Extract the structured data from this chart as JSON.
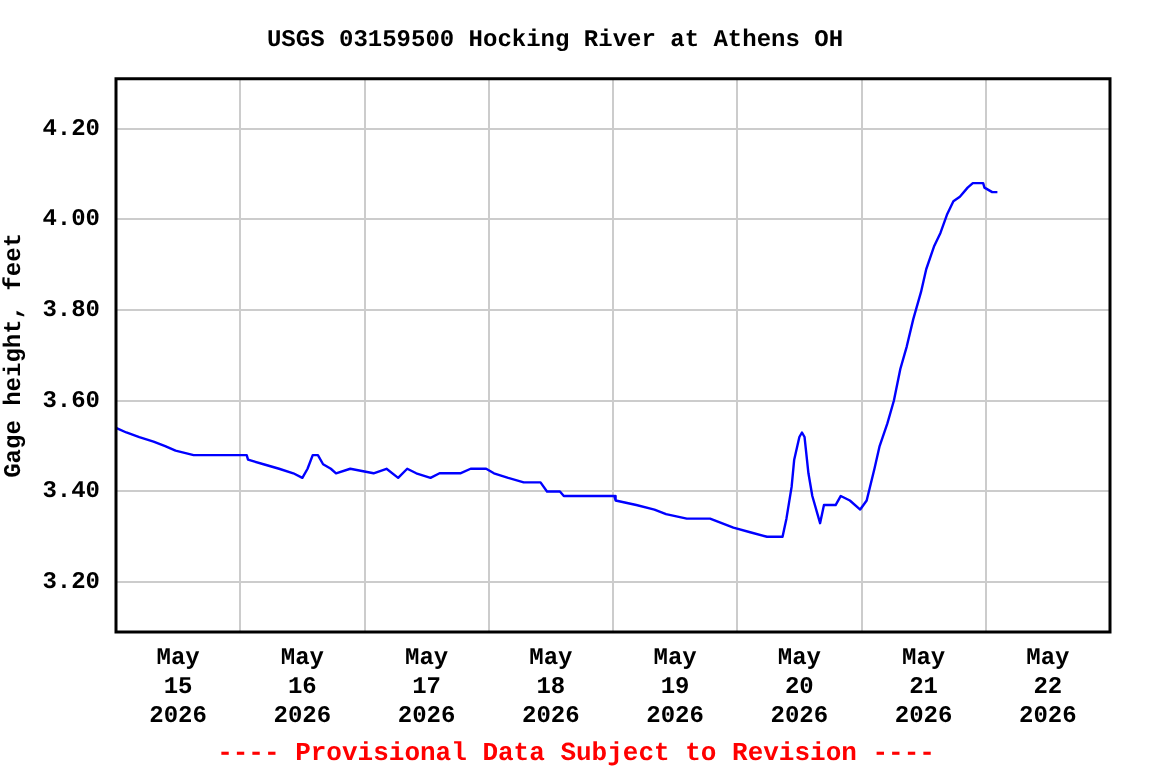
{
  "chart_data": {
    "type": "line",
    "title": "USGS 03159500 Hocking River at Athens OH",
    "ylabel": "Gage height, feet",
    "annotations": [
      "---- Provisional Data Subject to Revision ----"
    ],
    "x": [
      "2026-05-15T00:00",
      "2026-05-15T02:00",
      "2026-05-15T04:30",
      "2026-05-15T07:15",
      "2026-05-15T09:30",
      "2026-05-15T11:30",
      "2026-05-15T15:00",
      "2026-05-16T01:15",
      "2026-05-16T01:30",
      "2026-05-16T04:30",
      "2026-05-16T07:30",
      "2026-05-16T10:15",
      "2026-05-16T12:00",
      "2026-05-16T13:00",
      "2026-05-16T14:00",
      "2026-05-16T15:00",
      "2026-05-16T16:00",
      "2026-05-16T17:30",
      "2026-05-16T18:30",
      "2026-05-16T21:15",
      "2026-05-17T01:45",
      "2026-05-17T04:15",
      "2026-05-17T06:30",
      "2026-05-17T08:15",
      "2026-05-17T10:00",
      "2026-05-17T12:45",
      "2026-05-17T14:30",
      "2026-05-17T18:30",
      "2026-05-17T20:30",
      "2026-05-17T23:30",
      "2026-05-18T01:00",
      "2026-05-18T03:45",
      "2026-05-18T06:45",
      "2026-05-18T10:00",
      "2026-05-18T11:15",
      "2026-05-18T13:45",
      "2026-05-18T14:30",
      "2026-05-18T17:45",
      "2026-05-19T00:15",
      "2026-05-19T00:30",
      "2026-05-19T04:30",
      "2026-05-19T08:00",
      "2026-05-19T10:15",
      "2026-05-19T14:15",
      "2026-05-19T18:45",
      "2026-05-19T23:15",
      "2026-05-20T02:30",
      "2026-05-20T05:45",
      "2026-05-20T08:45",
      "2026-05-20T09:30",
      "2026-05-20T10:30",
      "2026-05-20T11:00",
      "2026-05-20T12:00",
      "2026-05-20T12:30",
      "2026-05-20T13:00",
      "2026-05-20T13:45",
      "2026-05-20T14:30",
      "2026-05-20T15:30",
      "2026-05-20T16:00",
      "2026-05-20T16:45",
      "2026-05-20T19:00",
      "2026-05-20T20:00",
      "2026-05-20T21:45",
      "2026-05-20T23:45",
      "2026-05-21T01:00",
      "2026-05-21T02:30",
      "2026-05-21T03:30",
      "2026-05-21T05:00",
      "2026-05-21T06:15",
      "2026-05-21T07:30",
      "2026-05-21T08:45",
      "2026-05-21T10:00",
      "2026-05-21T11:30",
      "2026-05-21T12:30",
      "2026-05-21T14:00",
      "2026-05-21T15:15",
      "2026-05-21T16:30",
      "2026-05-21T17:45",
      "2026-05-21T19:00",
      "2026-05-21T20:30",
      "2026-05-21T21:30",
      "2026-05-21T23:30",
      "2026-05-21T23:45",
      "2026-05-22T01:15",
      "2026-05-22T02:15"
    ],
    "series": [
      {
        "color": "#0000ff",
        "values": [
          3.54,
          3.53,
          3.52,
          3.51,
          3.5,
          3.49,
          3.48,
          3.48,
          3.47,
          3.46,
          3.45,
          3.44,
          3.43,
          3.45,
          3.48,
          3.48,
          3.46,
          3.45,
          3.44,
          3.45,
          3.44,
          3.45,
          3.43,
          3.45,
          3.44,
          3.43,
          3.44,
          3.44,
          3.45,
          3.45,
          3.44,
          3.43,
          3.42,
          3.42,
          3.4,
          3.4,
          3.39,
          3.39,
          3.39,
          3.38,
          3.37,
          3.36,
          3.35,
          3.34,
          3.34,
          3.32,
          3.31,
          3.3,
          3.3,
          3.34,
          3.41,
          3.47,
          3.52,
          3.53,
          3.52,
          3.44,
          3.39,
          3.35,
          3.33,
          3.37,
          3.37,
          3.39,
          3.38,
          3.36,
          3.38,
          3.45,
          3.5,
          3.55,
          3.6,
          3.67,
          3.72,
          3.78,
          3.84,
          3.89,
          3.94,
          3.97,
          4.01,
          4.04,
          4.05,
          4.07,
          4.08,
          4.08,
          4.07,
          4.06,
          4.06
        ]
      }
    ],
    "xlim": [
      "2026-05-15",
      "2026-05-23"
    ],
    "xticks": [
      {
        "value": "2026-05-15",
        "label": null
      },
      {
        "value": "2026-05-15T12:00",
        "label": "May 15 2026"
      },
      {
        "value": "2026-05-16",
        "label": null
      },
      {
        "value": "2026-05-16T12:00",
        "label": "May 16 2026"
      },
      {
        "value": "2026-05-17",
        "label": null
      },
      {
        "value": "2026-05-17T12:00",
        "label": "May 17 2026"
      },
      {
        "value": "2026-05-18",
        "label": null
      },
      {
        "value": "2026-05-18T12:00",
        "label": "May 18 2026"
      },
      {
        "value": "2026-05-19",
        "label": null
      },
      {
        "value": "2026-05-19T12:00",
        "label": "May 19 2026"
      },
      {
        "value": "2026-05-20",
        "label": null
      },
      {
        "value": "2026-05-20T12:00",
        "label": "May 20 2026"
      },
      {
        "value": "2026-05-21",
        "label": null
      },
      {
        "value": "2026-05-21T12:00",
        "label": "May 21 2026"
      },
      {
        "value": "2026-05-22",
        "label": null
      },
      {
        "value": "2026-05-22T12:00",
        "label": "May 22 2026"
      },
      {
        "value": "2026-05-23",
        "label": null
      }
    ],
    "ylim": [
      3.09,
      4.31
    ],
    "yticks": [
      {
        "value": 3.2,
        "label": "3.20"
      },
      {
        "value": 3.4,
        "label": "3.40"
      },
      {
        "value": 3.6,
        "label": "3.60"
      },
      {
        "value": 3.8,
        "label": "3.80"
      },
      {
        "value": 4.0,
        "label": "4.00"
      },
      {
        "value": 4.2,
        "label": "4.20"
      }
    ],
    "grid": true,
    "legend": false
  }
}
